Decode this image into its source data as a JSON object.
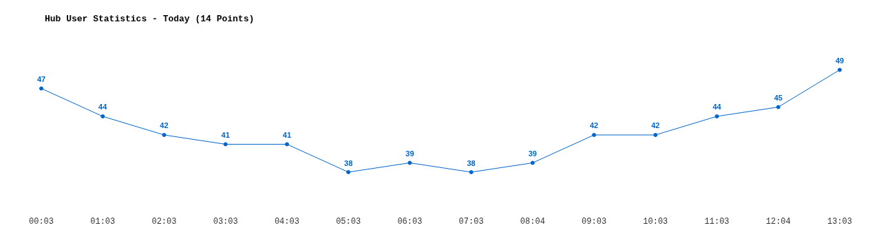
{
  "chart_data": {
    "type": "line",
    "title": "Hub User Statistics - Today (14 Points)",
    "categories": [
      "00:03",
      "01:03",
      "02:03",
      "03:03",
      "04:03",
      "05:03",
      "06:03",
      "07:03",
      "08:04",
      "09:03",
      "10:03",
      "11:03",
      "12:04",
      "13:03"
    ],
    "series": [
      {
        "color": "#0066cc",
        "values": [
          47,
          44,
          42,
          41,
          41,
          38,
          39,
          38,
          39,
          42,
          42,
          44,
          45,
          49
        ]
      }
    ],
    "data_labels": true,
    "marker": "circle",
    "line_style": "solid",
    "tick_labels": "x",
    "grid": false
  }
}
